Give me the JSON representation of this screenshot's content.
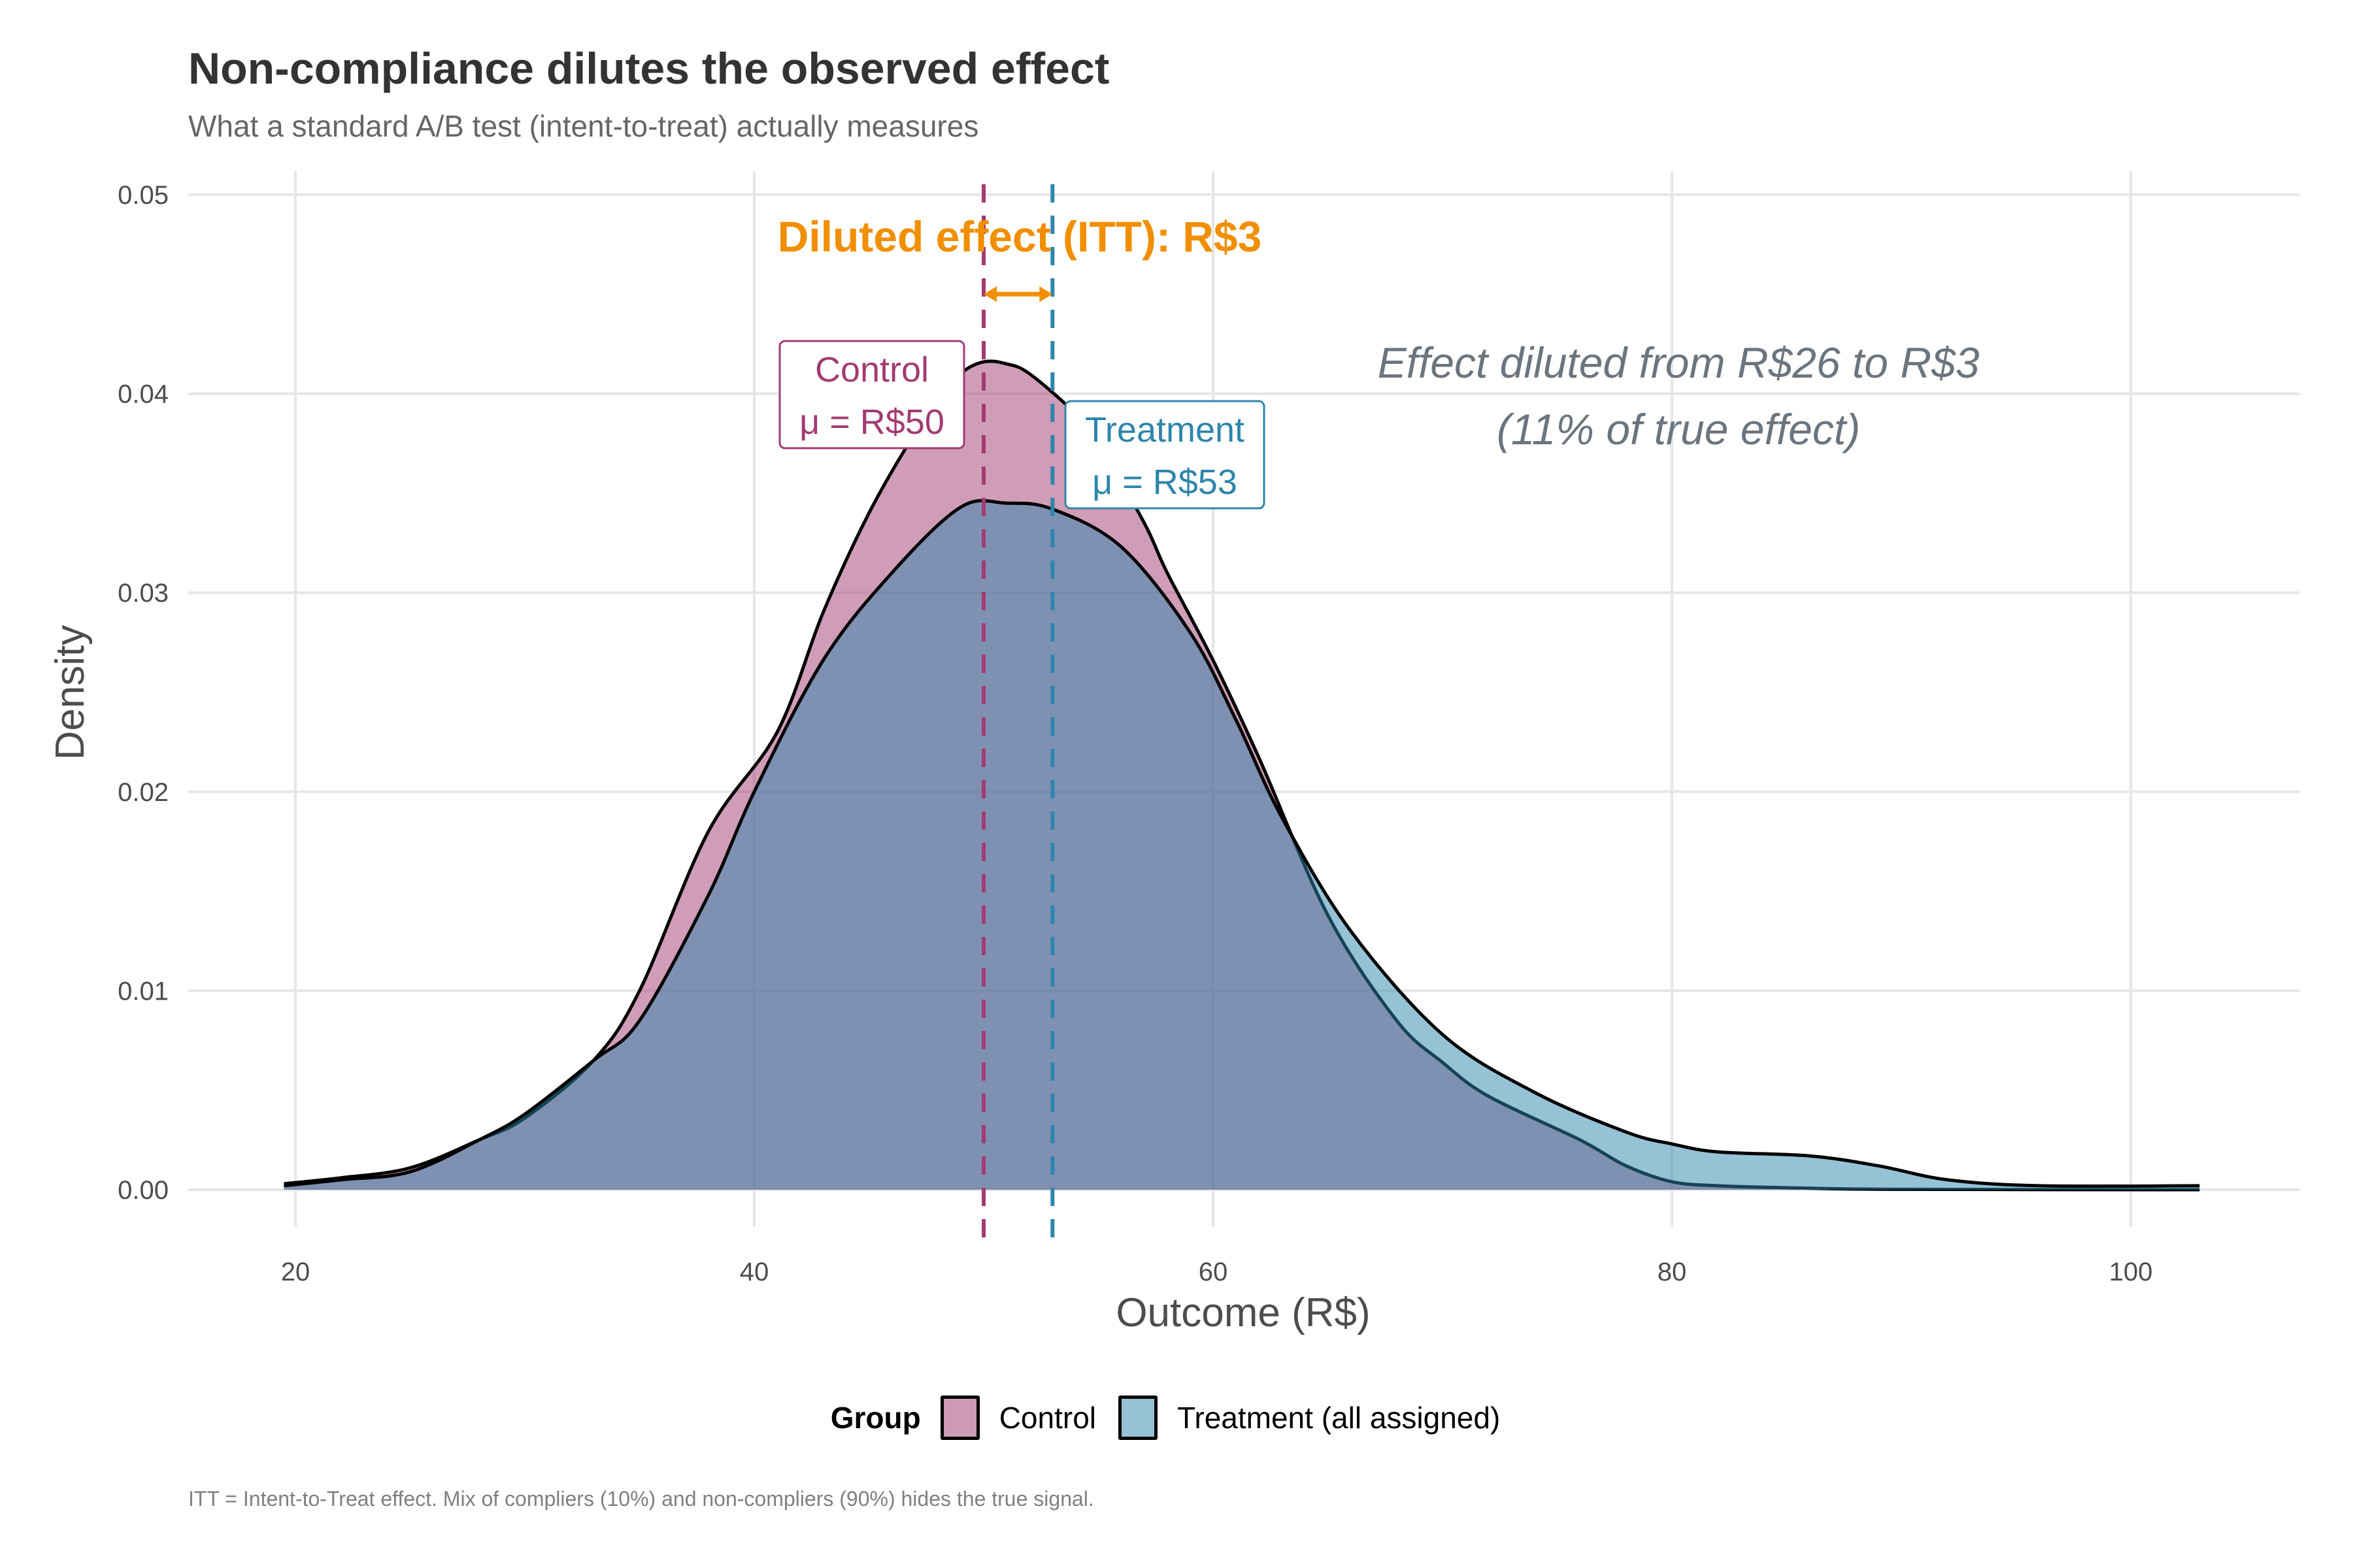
{
  "title": "Non-compliance dilutes the observed effect",
  "subtitle": "What a standard A/B test (intent-to-treat) actually measures",
  "caption": "ITT = Intent-to-Treat effect. Mix of compliers (10%) and non-compliers (90%) hides the true signal.",
  "legend": {
    "title": "Group",
    "items": [
      {
        "label": "Control",
        "color": "#CE9BB6"
      },
      {
        "label": "Treatment (all assigned)",
        "color": "#96C1D5"
      }
    ]
  },
  "colors": {
    "control": "#A23B72",
    "treatment": "#2E86AB",
    "itt": "#F18F01",
    "annotation": "#6C757D"
  },
  "chart_data": {
    "type": "area",
    "title": "Non-compliance dilutes the observed effect",
    "subtitle": "What a standard A/B test (intent-to-treat) actually measures",
    "xlabel": "Outcome (R$)",
    "ylabel": "Density",
    "xlim": [
      15.5,
      107.5
    ],
    "ylim": [
      -0.0025,
      0.05
    ],
    "xticks": [
      20,
      40,
      60,
      80,
      100
    ],
    "xtick_labels": [
      "20",
      "40",
      "60",
      "80",
      "100"
    ],
    "yticks": [
      0,
      0.01,
      0.02,
      0.03,
      0.04,
      0.05
    ],
    "ytick_labels": [
      "0.00",
      "0.01",
      "0.02",
      "0.03",
      "0.04",
      "0.05"
    ],
    "grid": true,
    "legend_position": "bottom",
    "series": [
      {
        "name": "Control",
        "mean": 50,
        "x": [
          19.5,
          22,
          25,
          28,
          30,
          33,
          35,
          38,
          41,
          43,
          45,
          47,
          48,
          49,
          50,
          51,
          52,
          54,
          55,
          57,
          58,
          60,
          62,
          65,
          68,
          70,
          72,
          76,
          78,
          80,
          82,
          85,
          90,
          103
        ],
        "y": [
          0.0003,
          0.0006,
          0.0011,
          0.0025,
          0.0036,
          0.0065,
          0.01,
          0.018,
          0.023,
          0.029,
          0.034,
          0.038,
          0.0395,
          0.041,
          0.0416,
          0.0415,
          0.041,
          0.039,
          0.0375,
          0.0335,
          0.031,
          0.0266,
          0.0217,
          0.0138,
          0.0085,
          0.0064,
          0.0047,
          0.0025,
          0.0012,
          0.0004,
          0.0002,
          0.0001,
          2e-05,
          0.0
        ]
      },
      {
        "name": "Treatment (all assigned)",
        "mean": 53,
        "x": [
          19.5,
          22,
          25,
          28,
          30,
          33,
          35,
          38,
          40,
          43,
          46,
          49,
          51,
          53,
          56,
          59,
          61,
          63,
          66,
          70,
          74,
          78,
          80,
          82,
          86,
          89,
          92,
          96,
          103
        ],
        "y": [
          0.0002,
          0.0005,
          0.0009,
          0.0025,
          0.0038,
          0.0065,
          0.0085,
          0.0148,
          0.02,
          0.0266,
          0.031,
          0.0343,
          0.0345,
          0.0342,
          0.0323,
          0.028,
          0.0236,
          0.0187,
          0.013,
          0.0078,
          0.0049,
          0.0029,
          0.0023,
          0.0019,
          0.0017,
          0.0012,
          0.0005,
          0.0002,
          0.0002
        ]
      }
    ],
    "vlines": [
      {
        "x": 50,
        "series": "Control"
      },
      {
        "x": 53,
        "series": "Treatment (all assigned)"
      }
    ],
    "annotations": {
      "itt_label": "Diluted effect (ITT): R$3",
      "itt_arrow": {
        "from": 50,
        "to": 53,
        "y": 0.045
      },
      "control_label_line1": "Control",
      "control_label_line2": "μ = R$50",
      "treatment_label_line1": "Treatment",
      "treatment_label_line2": "μ = R$53",
      "dilution_line1": "Effect diluted from R$26 to R$3",
      "dilution_line2": "(11% of true effect)"
    }
  }
}
